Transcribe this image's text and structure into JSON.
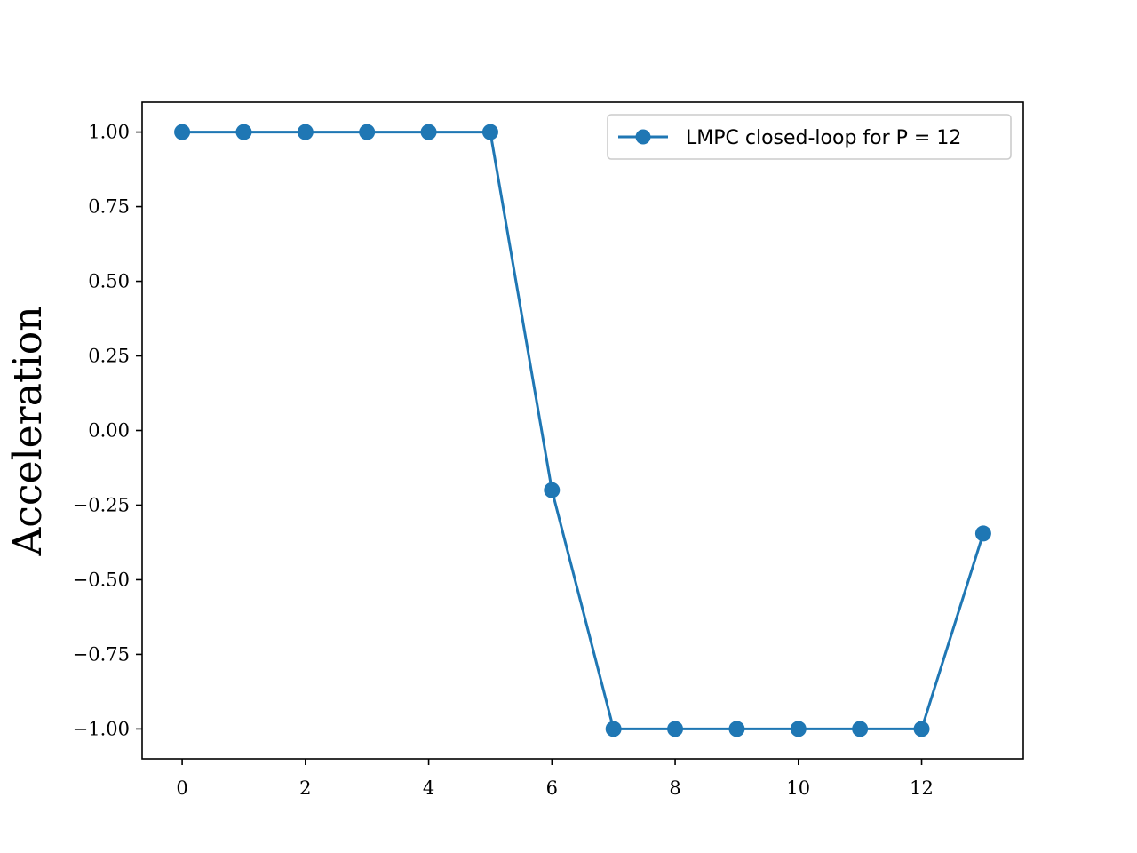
{
  "chart_data": {
    "type": "line",
    "xlabel": "",
    "ylabel": "Acceleration",
    "xlim": [
      -0.65,
      13.65
    ],
    "ylim": [
      -1.1,
      1.1
    ],
    "xticks": [
      0,
      2,
      4,
      6,
      8,
      10,
      12
    ],
    "xtick_labels": [
      "0",
      "2",
      "4",
      "6",
      "8",
      "10",
      "12"
    ],
    "yticks": [
      1.0,
      0.75,
      0.5,
      0.25,
      0.0,
      -0.25,
      -0.5,
      -0.75,
      -1.0
    ],
    "ytick_labels": [
      "1.00",
      "0.75",
      "0.50",
      "0.25",
      "0.00",
      "−0.25",
      "−0.50",
      "−0.75",
      "−1.00"
    ],
    "grid": false,
    "legend_position": "top-right",
    "series": [
      {
        "name": "LMPC closed-loop for P = 12",
        "color": "#1f77b4",
        "marker": "circle",
        "x": [
          0,
          1,
          2,
          3,
          4,
          5,
          6,
          7,
          8,
          9,
          10,
          11,
          12,
          13
        ],
        "y": [
          1.0,
          1.0,
          1.0,
          1.0,
          1.0,
          1.0,
          -0.2,
          -1.0,
          -1.0,
          -1.0,
          -1.0,
          -1.0,
          -1.0,
          -0.345
        ]
      }
    ]
  }
}
